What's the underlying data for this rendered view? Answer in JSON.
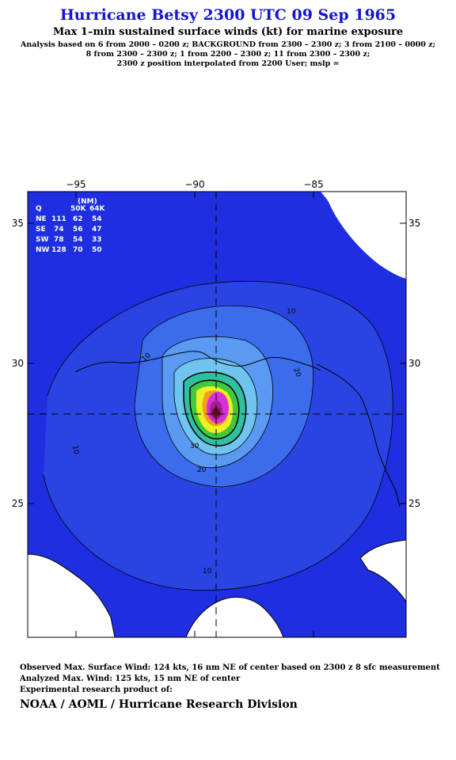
{
  "title": "Hurricane Betsy 2300 UTC 09 Sep 1965",
  "subtitle": "Max 1–min sustained surface winds (kt) for marine exposure",
  "analysis_lines": [
    "Analysis based on  6 from 2000 – 0200 z;  BACKGROUND from 2300 – 2300 z;  3 from 2100 – 0000 z;",
    "8 from 2300 – 2300 z;  1 from 2200 – 2300 z;  11 from 2300 – 2300 z;",
    "2300 z position interpolated from 2200 User; mslp ="
  ],
  "map": {
    "x_ticks": [
      "−95",
      "−90",
      "−85"
    ],
    "y_ticks": [
      "35",
      "30",
      "25"
    ],
    "contour_labels": [
      "10",
      "10",
      "10",
      "20",
      "20",
      "30",
      "30",
      "30",
      "10"
    ],
    "colors": {
      "ocean": "#1e2ee0",
      "land": "#ffffff",
      "coast": "#000000",
      "band_light": "#4a8cf0",
      "band_mid": "#3160ea",
      "core_yellow": "#f0f020",
      "core_green": "#30c050",
      "core_magenta": "#e030e0"
    }
  },
  "radii_table": {
    "header": [
      "Q",
      "(NM)",
      "50K",
      "64K"
    ],
    "rows": [
      [
        "NE",
        "111",
        "62",
        "54"
      ],
      [
        "SE",
        "74",
        "56",
        "47"
      ],
      [
        "SW",
        "78",
        "54",
        "33"
      ],
      [
        "NW",
        "128",
        "70",
        "50"
      ]
    ]
  },
  "footer": {
    "observed": "Observed Max. Surface Wind: 124 kts, 16 nm NE of center based on 2300 z 8 sfc measurement",
    "analyzed": "Analyzed Max. Wind: 125 kts, 15 nm NE of center",
    "experimental": "Experimental research product of:",
    "org": "NOAA / AOML / Hurricane Research Division"
  }
}
